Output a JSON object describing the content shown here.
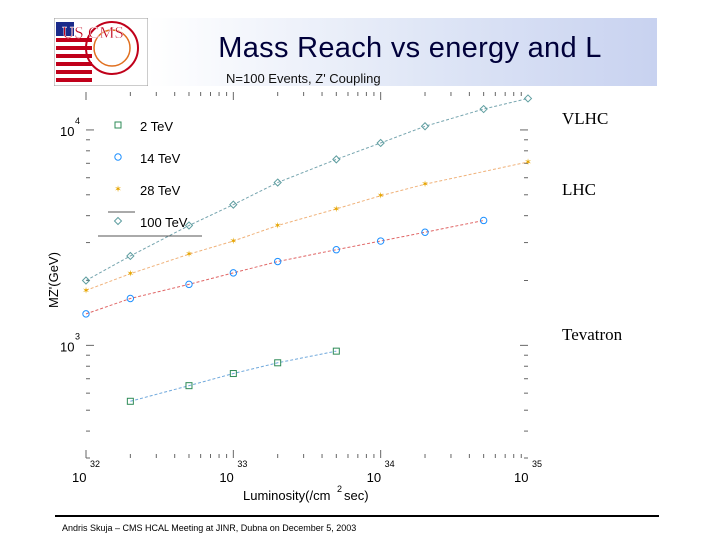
{
  "slide": {
    "title": "Mass Reach vs energy and L",
    "subtitle": "N=100 Events, Z' Coupling",
    "logo_text": "US CMS",
    "labels": {
      "vlhc": "VLHC",
      "lhc": "LHC",
      "tevatron": "Tevatron"
    },
    "footer": "Andris Skuja – CMS HCAL Meeting at JINR, Dubna on December 5, 2003",
    "colors": {
      "title": "#00003a",
      "header_band": "#c8d2f0",
      "logo_red": "#c0001a"
    }
  },
  "chart_data": {
    "type": "line",
    "xscale": "log",
    "yscale": "log",
    "xlim": [
      1e+32,
      1e+35
    ],
    "ylim": [
      300,
      15000
    ],
    "x_ticks": [
      {
        "value": 1e+32,
        "base": "10",
        "exp": "32"
      },
      {
        "value": 1e+33,
        "base": "10",
        "exp": "33"
      },
      {
        "value": 1e+34,
        "base": "10",
        "exp": "34"
      },
      {
        "value": 1e+35,
        "base": "10",
        "exp": "35"
      }
    ],
    "y_ticks": [
      {
        "value": 1000,
        "base": "10",
        "exp": "3"
      },
      {
        "value": 10000,
        "base": "10",
        "exp": "4"
      }
    ],
    "xlabel": "Luminosity(/cm²sec)",
    "xlabel_main": "Luminosity(/cm",
    "xlabel_sup": "2",
    "xlabel_tail": "sec)",
    "ylabel": "MZ'(GeV)",
    "legend_position": "top-left",
    "series": [
      {
        "name": "2 TeV",
        "color": "#2e8b57",
        "marker": "square",
        "x": [
          2e+32,
          5e+32,
          1e+33,
          2e+33,
          5e+33
        ],
        "y": [
          550,
          650,
          740,
          830,
          940
        ]
      },
      {
        "name": "14 TeV",
        "color": "#1e90ff",
        "marker": "circle",
        "x": [
          1e+32,
          2e+32,
          5e+32,
          1e+33,
          2e+33,
          5e+33,
          1e+34,
          2e+34,
          5e+34
        ],
        "y": [
          1400,
          1650,
          1920,
          2170,
          2450,
          2780,
          3050,
          3350,
          3800
        ]
      },
      {
        "name": "28 TeV",
        "color": "#e6a500",
        "marker": "star",
        "x": [
          1e+32,
          2e+32,
          5e+32,
          1e+33,
          2e+33,
          5e+33,
          1e+34,
          2e+34,
          1e+35
        ],
        "y": [
          1800,
          2150,
          2650,
          3050,
          3600,
          4300,
          4950,
          5600,
          7100
        ]
      },
      {
        "name": "100 TeV",
        "color": "#5f9ea0",
        "marker": "diamond",
        "x": [
          1e+32,
          2e+32,
          5e+32,
          1e+33,
          2e+33,
          5e+33,
          1e+34,
          2e+34,
          5e+34,
          1e+35
        ],
        "y": [
          2000,
          2600,
          3600,
          4500,
          5700,
          7300,
          8700,
          10400,
          12500,
          14000
        ]
      }
    ],
    "fit_colors": [
      "#6fa8dc",
      "#e06666",
      "#f0b27a",
      "#76a5af"
    ]
  }
}
